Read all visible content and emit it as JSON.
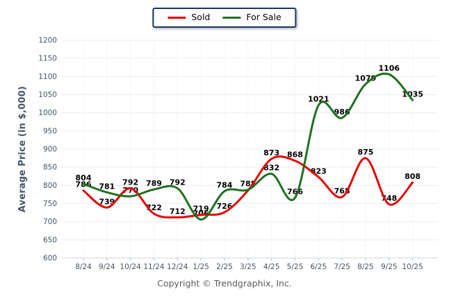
{
  "legend": {
    "items": [
      {
        "label": "Sold",
        "color": "#e60000"
      },
      {
        "label": "For Sale",
        "color": "#1d701d"
      }
    ]
  },
  "footer": {
    "copyright": "Copyright © Trendgraphix, Inc."
  },
  "chart_data": {
    "type": "line",
    "title": "",
    "xlabel": "",
    "ylabel": "Average Price (in $,000)",
    "ylim": [
      600,
      1200
    ],
    "ytick_step": 50,
    "grid": true,
    "legend_position": "top",
    "categories": [
      "8/24",
      "9/24",
      "10/24",
      "11/24",
      "12/24",
      "1/25",
      "2/25",
      "3/25",
      "4/25",
      "5/25",
      "6/25",
      "7/25",
      "8/25",
      "9/25",
      "10/25"
    ],
    "series": [
      {
        "name": "Sold",
        "color": "#e60000",
        "values": [
          786,
          739,
          792,
          722,
          712,
          719,
          726,
          786,
          873,
          868,
          823,
          768,
          875,
          748,
          808
        ],
        "labels": [
          "786",
          "739",
          "792",
          "722",
          "712",
          "719",
          "726",
          "",
          "873",
          "868",
          "823",
          "768",
          "875",
          "748",
          "808"
        ]
      },
      {
        "name": "For Sale",
        "color": "#1d701d",
        "values": [
          804,
          781,
          770,
          789,
          792,
          706,
          784,
          788,
          832,
          766,
          1021,
          986,
          1079,
          1106,
          1035
        ],
        "labels": [
          "804",
          "781",
          "770",
          "789",
          "792",
          "706",
          "784",
          "788",
          "832",
          "766",
          "1021",
          "986",
          "1079",
          "1106",
          "1035"
        ]
      }
    ],
    "colors": {
      "gridline": "#ececec",
      "vertical_gridline": "#f4f4f4",
      "axis_line": "#ccd4dd",
      "tick_mark": "#b9c2cc",
      "tick_text": "#44546a",
      "data_label": "#000000"
    }
  }
}
